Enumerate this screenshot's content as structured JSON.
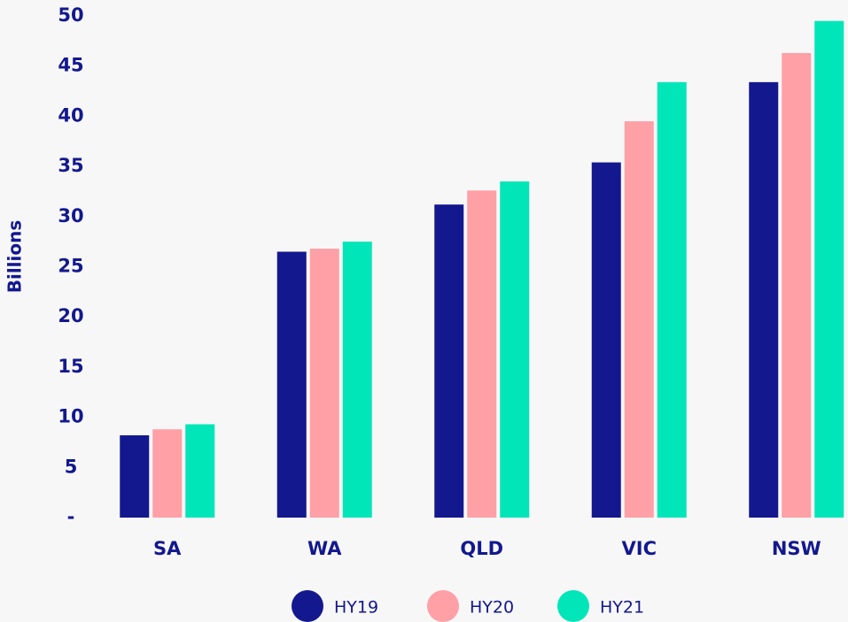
{
  "chart_data": {
    "type": "bar",
    "y_label": "Billions",
    "categories": [
      "SA",
      "WA",
      "QLD",
      "VIC",
      "NSW"
    ],
    "series": [
      {
        "name": "HY19",
        "color": "#13188f",
        "values": [
          8.2,
          26.5,
          31.2,
          35.4,
          43.4
        ]
      },
      {
        "name": "HY20",
        "color": "#ff9fa6",
        "values": [
          8.8,
          26.8,
          32.6,
          39.5,
          46.3
        ]
      },
      {
        "name": "HY21",
        "color": "#00e6b8",
        "values": [
          9.3,
          27.5,
          33.5,
          43.4,
          49.5
        ]
      }
    ],
    "ylim": [
      0,
      50
    ],
    "yticks": [
      {
        "value": 0,
        "label": "-"
      },
      5,
      10,
      15,
      20,
      25,
      30,
      35,
      40,
      45,
      50
    ],
    "grid": false,
    "legend": "bottom"
  }
}
